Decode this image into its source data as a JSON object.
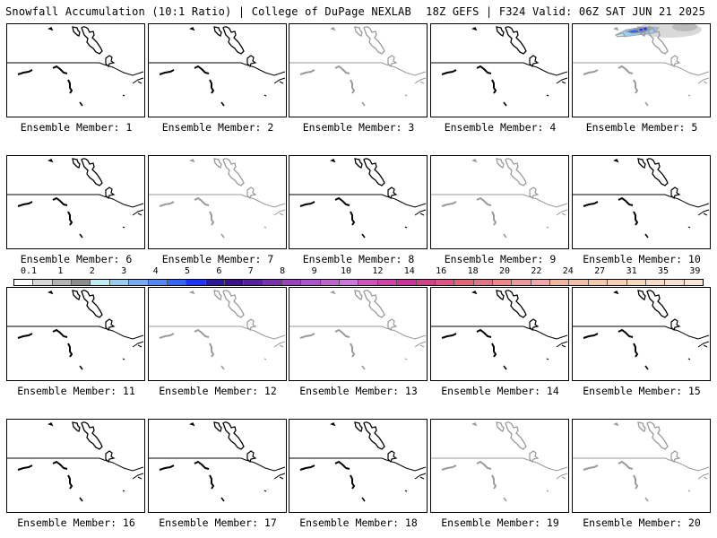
{
  "header": {
    "left": "Snowfall Accumulation (10:1 Ratio) | College of DuPage NEXLAB",
    "right": "18Z GEFS | F324 Valid: 06Z SAT JUN 21 2025"
  },
  "panels": [
    {
      "label": "Ensemble Member: 1",
      "style": "dark"
    },
    {
      "label": "Ensemble Member: 2",
      "style": "dark"
    },
    {
      "label": "Ensemble Member: 3",
      "style": "faint"
    },
    {
      "label": "Ensemble Member: 4",
      "style": "dark"
    },
    {
      "label": "Ensemble Member: 5",
      "style": "faint",
      "snow": true
    },
    {
      "label": "Ensemble Member: 6",
      "style": "dark"
    },
    {
      "label": "Ensemble Member: 7",
      "style": "faint"
    },
    {
      "label": "Ensemble Member: 8",
      "style": "dark"
    },
    {
      "label": "Ensemble Member: 9",
      "style": "faint"
    },
    {
      "label": "Ensemble Member: 10",
      "style": "dark"
    },
    {
      "label": "Ensemble Member: 11",
      "style": "dark"
    },
    {
      "label": "Ensemble Member: 12",
      "style": "faint"
    },
    {
      "label": "Ensemble Member: 13",
      "style": "faint"
    },
    {
      "label": "Ensemble Member: 14",
      "style": "dark"
    },
    {
      "label": "Ensemble Member: 15",
      "style": "dark"
    },
    {
      "label": "Ensemble Member: 16",
      "style": "dark"
    },
    {
      "label": "Ensemble Member: 17",
      "style": "dark"
    },
    {
      "label": "Ensemble Member: 18",
      "style": "dark"
    },
    {
      "label": "Ensemble Member: 19",
      "style": "faint"
    },
    {
      "label": "Ensemble Member: 20",
      "style": "faint"
    }
  ],
  "colorbar": {
    "ticks": [
      "0.1",
      "1",
      "2",
      "3",
      "4",
      "5",
      "6",
      "7",
      "8",
      "9",
      "10",
      "12",
      "14",
      "16",
      "18",
      "20",
      "22",
      "24",
      "27",
      "31",
      "35",
      "39"
    ],
    "colors": [
      "#ffffff",
      "#d9d9d9",
      "#b3b3b3",
      "#8c8c8c",
      "#bfeef3",
      "#99ccf0",
      "#77aaf0",
      "#5588f2",
      "#3366f5",
      "#1a33f5",
      "#2a1a9a",
      "#3d0f88",
      "#552299",
      "#7733aa",
      "#9944bb",
      "#aa55cc",
      "#bb66cc",
      "#cc77dd",
      "#cc55bb",
      "#cc44aa",
      "#cc3399",
      "#cc4488",
      "#dd5588",
      "#dd6677",
      "#dd7788",
      "#ee8888",
      "#ee9999",
      "#eeaaaa",
      "#f0b8a0",
      "#f2c0a8",
      "#f5c8b0",
      "#f8d0b8",
      "#f8d8c0",
      "#fadcc8",
      "#fae0d0",
      "#fce8d8"
    ]
  }
}
